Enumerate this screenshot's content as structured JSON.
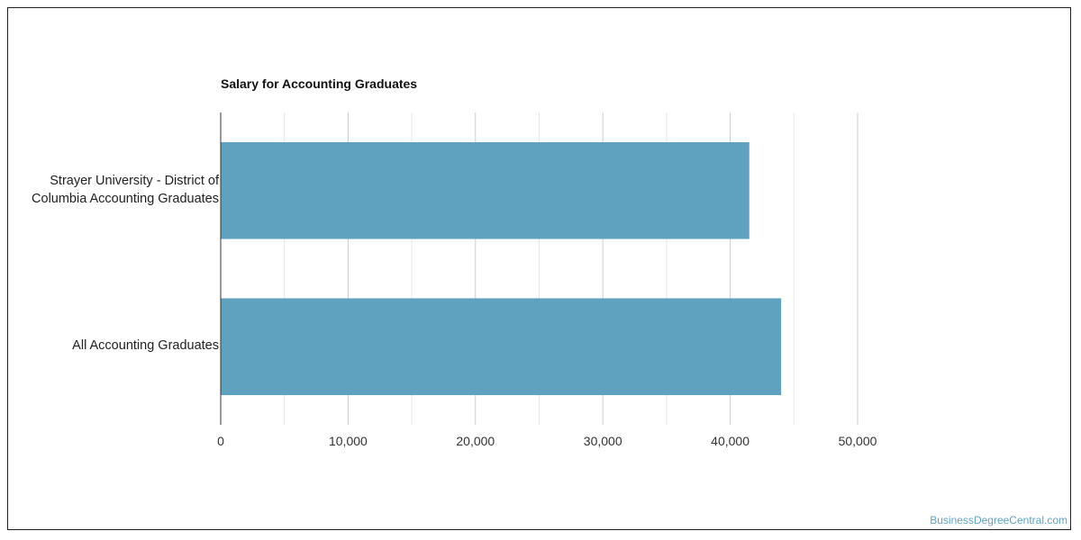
{
  "chart_data": {
    "type": "bar",
    "orientation": "horizontal",
    "title": "Salary for Accounting Graduates",
    "categories": [
      [
        "Strayer University - District of",
        "Columbia Accounting Graduates"
      ],
      [
        "All Accounting Graduates"
      ]
    ],
    "values": [
      41500,
      44000
    ],
    "xlim": [
      0,
      50000
    ],
    "ticks": [
      "0",
      "10,000",
      "20,000",
      "30,000",
      "40,000",
      "50,000"
    ],
    "tick_values": [
      0,
      10000,
      20000,
      30000,
      40000,
      50000
    ],
    "grid": true,
    "bar_color": "#5ea2bf",
    "xlabel": "",
    "ylabel": ""
  },
  "watermark": "BusinessDegreeCentral.com"
}
